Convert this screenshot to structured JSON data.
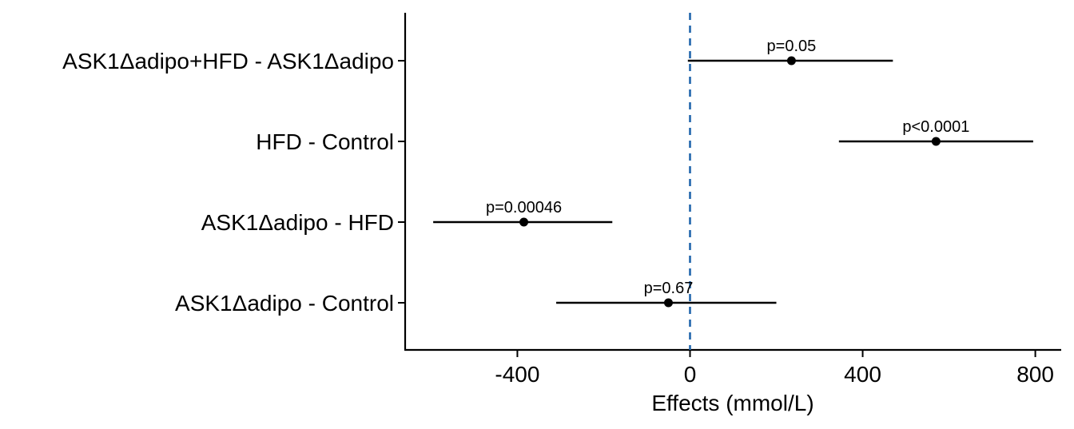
{
  "chart_data": {
    "type": "forest",
    "xlabel": "Effects (mmol/L)",
    "ylabel": "",
    "xlim": [
      -660,
      860
    ],
    "xticks": [
      -400,
      0,
      400,
      800
    ],
    "xtick_labels": [
      "-400",
      "0",
      "400",
      "800"
    ],
    "reference_line": {
      "x": 0,
      "style": "dashed",
      "color": "#2166ac"
    },
    "grid": false,
    "rows": [
      {
        "label": "ASK1Δadipo+HFD - ASK1Δadipo",
        "estimate": 235,
        "lower": -5,
        "upper": 470,
        "annotation": "p=0.05"
      },
      {
        "label": "HFD - Control",
        "estimate": 570,
        "lower": 345,
        "upper": 795,
        "annotation": "p<0.0001"
      },
      {
        "label": "ASK1Δadipo - HFD",
        "estimate": -385,
        "lower": -595,
        "upper": -180,
        "annotation": "p=0.00046"
      },
      {
        "label": "ASK1Δadipo - Control",
        "estimate": -50,
        "lower": -310,
        "upper": 200,
        "annotation": "p=0.67"
      }
    ]
  }
}
